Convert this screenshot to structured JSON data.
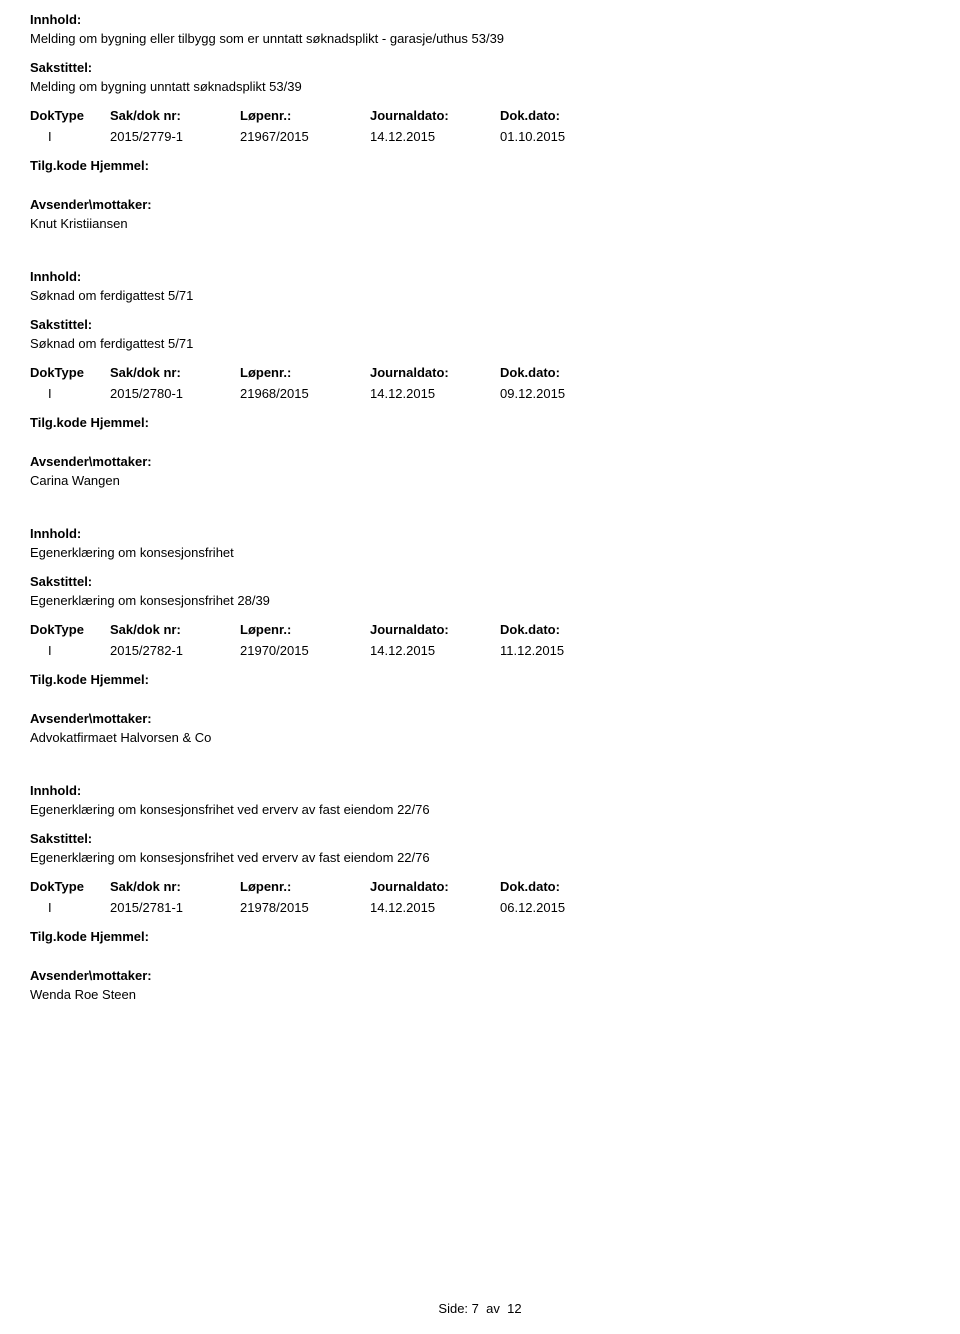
{
  "labels": {
    "innhold": "Innhold:",
    "sakstittel": "Sakstittel:",
    "doktype": "DokType",
    "sakdoknr": "Sak/dok nr:",
    "lopenr": "Løpenr.:",
    "journaldato": "Journaldato:",
    "dokdato": "Dok.dato:",
    "tilgkode": "Tilg.kode",
    "hjemmel": "Hjemmel:",
    "avsender": "Avsender\\mottaker:"
  },
  "entries": [
    {
      "innhold": "Melding om bygning eller tilbygg som er unntatt søknadsplikt - garasje/uthus 53/39",
      "sakstittel": "Melding om bygning unntatt søknadsplikt 53/39",
      "doktype": "I",
      "sakdoknr": "2015/2779-1",
      "lopenr": "21967/2015",
      "journaldato": "14.12.2015",
      "dokdato": "01.10.2015",
      "avsender": "Knut Kristiiansen"
    },
    {
      "innhold": "Søknad om ferdigattest 5/71",
      "sakstittel": "Søknad om ferdigattest 5/71",
      "doktype": "I",
      "sakdoknr": "2015/2780-1",
      "lopenr": "21968/2015",
      "journaldato": "14.12.2015",
      "dokdato": "09.12.2015",
      "avsender": "Carina Wangen"
    },
    {
      "innhold": "Egenerklæring om konsesjonsfrihet",
      "sakstittel": "Egenerklæring om konsesjonsfrihet 28/39",
      "doktype": "I",
      "sakdoknr": "2015/2782-1",
      "lopenr": "21970/2015",
      "journaldato": "14.12.2015",
      "dokdato": "11.12.2015",
      "avsender": "Advokatfirmaet Halvorsen & Co"
    },
    {
      "innhold": "Egenerklæring om konsesjonsfrihet ved erverv av fast eiendom  22/76",
      "sakstittel": "Egenerklæring om konsesjonsfrihet ved erverv av fast eiendom  22/76",
      "doktype": "I",
      "sakdoknr": "2015/2781-1",
      "lopenr": "21978/2015",
      "journaldato": "14.12.2015",
      "dokdato": "06.12.2015",
      "avsender": "Wenda Roe Steen"
    }
  ],
  "footer": {
    "side": "Side:",
    "current": "7",
    "av": "av",
    "total": "12"
  }
}
